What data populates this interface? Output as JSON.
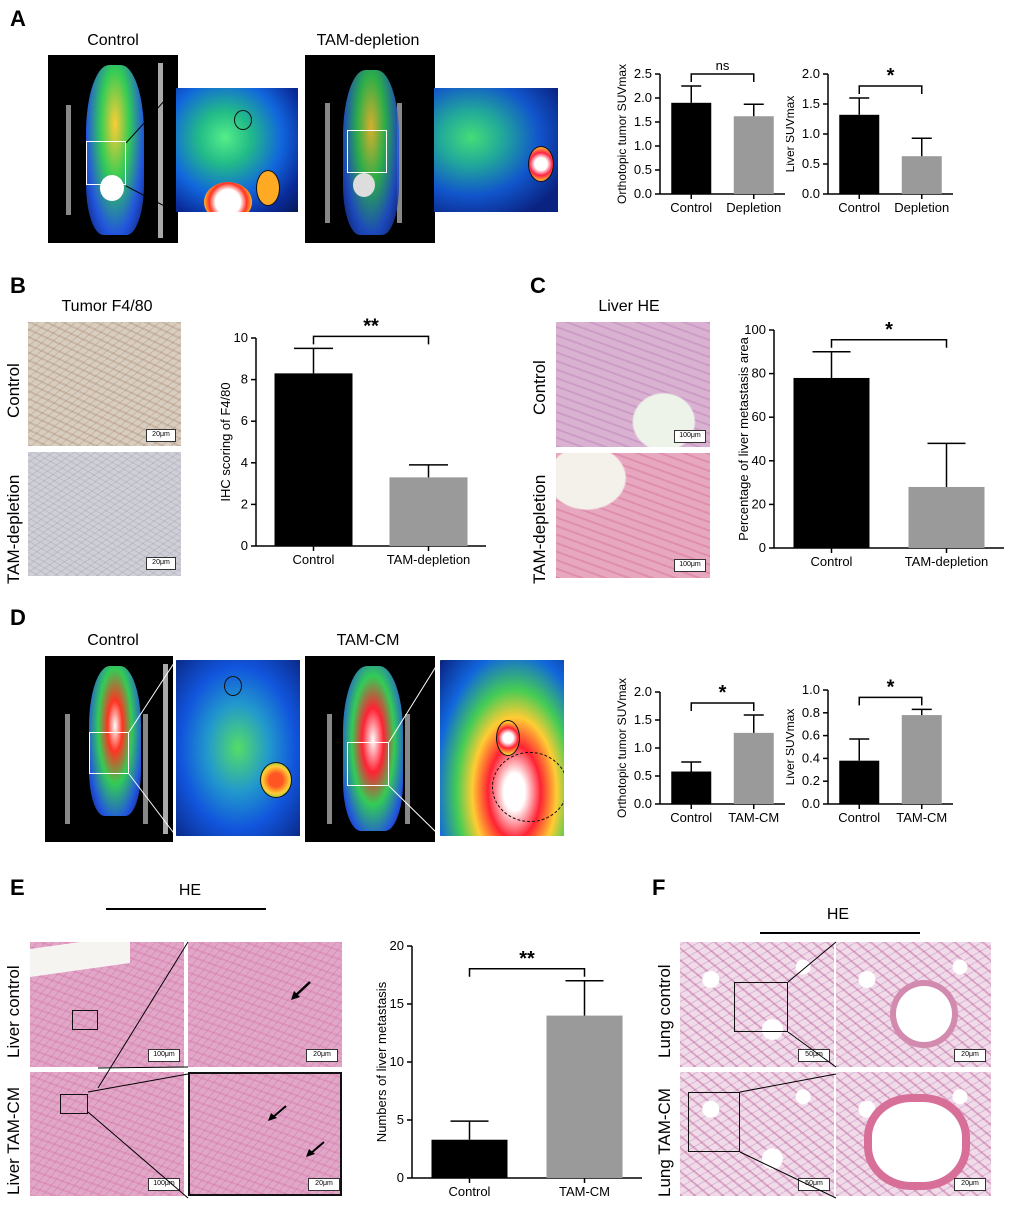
{
  "panels": {
    "A": {
      "label": "A",
      "title_left": "Control",
      "title_right": "TAM-depletion"
    },
    "B": {
      "label": "B",
      "title": "Tumor F4/80",
      "row_control": "Control",
      "row_treat": "TAM-depletion",
      "scale": "20μm"
    },
    "C": {
      "label": "C",
      "title": "Liver HE",
      "row_control": "Control",
      "row_treat": "TAM-depletion",
      "scale": "100μm"
    },
    "D": {
      "label": "D",
      "title_left": "Control",
      "title_right": "TAM-CM"
    },
    "E": {
      "label": "E",
      "title": "HE",
      "row_control": "Liver control",
      "row_treat": "Liver TAM-CM",
      "scale_low": "100μm",
      "scale_high": "20μm"
    },
    "F": {
      "label": "F",
      "title": "HE",
      "row_control": "Lung control",
      "row_treat": "Lung TAM-CM",
      "scale_low": "50μm",
      "scale_high": "20μm"
    }
  },
  "chart_data": [
    {
      "id": "A1",
      "type": "bar",
      "categories": [
        "Control",
        "Depletion"
      ],
      "values": [
        1.9,
        1.62
      ],
      "errors": [
        0.35,
        0.25
      ],
      "ylabel": "Orthotopic tumor SUVmax",
      "ylim": [
        0,
        2.5
      ],
      "yticks": [
        "0.0",
        "0.5",
        "1.0",
        "1.5",
        "2.0",
        "2.5"
      ],
      "significance": "ns",
      "colors": [
        "#000000",
        "#9a9a9a"
      ]
    },
    {
      "id": "A2",
      "type": "bar",
      "categories": [
        "Control",
        "Depletion"
      ],
      "values": [
        1.32,
        0.63
      ],
      "errors": [
        0.28,
        0.3
      ],
      "ylabel": "Liver SUVmax",
      "ylim": [
        0,
        2.0
      ],
      "yticks": [
        "0.0",
        "0.5",
        "1.0",
        "1.5",
        "2.0"
      ],
      "significance": "*",
      "colors": [
        "#000000",
        "#9a9a9a"
      ]
    },
    {
      "id": "B",
      "type": "bar",
      "categories": [
        "Control",
        "TAM-depletion"
      ],
      "values": [
        8.3,
        3.3
      ],
      "errors": [
        1.2,
        0.6
      ],
      "ylabel": "IHC scoring of F4/80",
      "ylim": [
        0,
        10
      ],
      "yticks": [
        "0",
        "2",
        "4",
        "6",
        "8",
        "10"
      ],
      "significance": "**",
      "colors": [
        "#000000",
        "#9a9a9a"
      ]
    },
    {
      "id": "C",
      "type": "bar",
      "categories": [
        "Control",
        "TAM-depletion"
      ],
      "values": [
        78,
        28
      ],
      "errors": [
        12,
        20
      ],
      "ylabel": "Percentage of liver metastasis area",
      "ylim": [
        0,
        100
      ],
      "yticks": [
        "0",
        "20",
        "40",
        "60",
        "80",
        "100"
      ],
      "significance": "*",
      "colors": [
        "#000000",
        "#9a9a9a"
      ]
    },
    {
      "id": "D1",
      "type": "bar",
      "categories": [
        "Control",
        "TAM-CM"
      ],
      "values": [
        0.58,
        1.27
      ],
      "errors": [
        0.17,
        0.32
      ],
      "ylabel": "Orthotopic tumor SUVmax",
      "ylim": [
        0,
        2.0
      ],
      "yticks": [
        "0.0",
        "0.5",
        "1.0",
        "1.5",
        "2.0"
      ],
      "significance": "*",
      "colors": [
        "#000000",
        "#9a9a9a"
      ]
    },
    {
      "id": "D2",
      "type": "bar",
      "categories": [
        "Control",
        "TAM-CM"
      ],
      "values": [
        0.38,
        0.78
      ],
      "errors": [
        0.19,
        0.05
      ],
      "ylabel": "Liver SUVmax",
      "ylim": [
        0,
        1.0
      ],
      "yticks": [
        "0.0",
        "0.2",
        "0.4",
        "0.6",
        "0.8",
        "1.0"
      ],
      "significance": "*",
      "colors": [
        "#000000",
        "#9a9a9a"
      ]
    },
    {
      "id": "E",
      "type": "bar",
      "categories": [
        "Control",
        "TAM-CM"
      ],
      "values": [
        3.3,
        14.0
      ],
      "errors": [
        1.6,
        3.0
      ],
      "ylabel": "Numbers of liver metastasis",
      "ylim": [
        0,
        20
      ],
      "yticks": [
        "0",
        "5",
        "10",
        "15",
        "20"
      ],
      "significance": "**",
      "colors": [
        "#000000",
        "#9a9a9a"
      ]
    }
  ]
}
